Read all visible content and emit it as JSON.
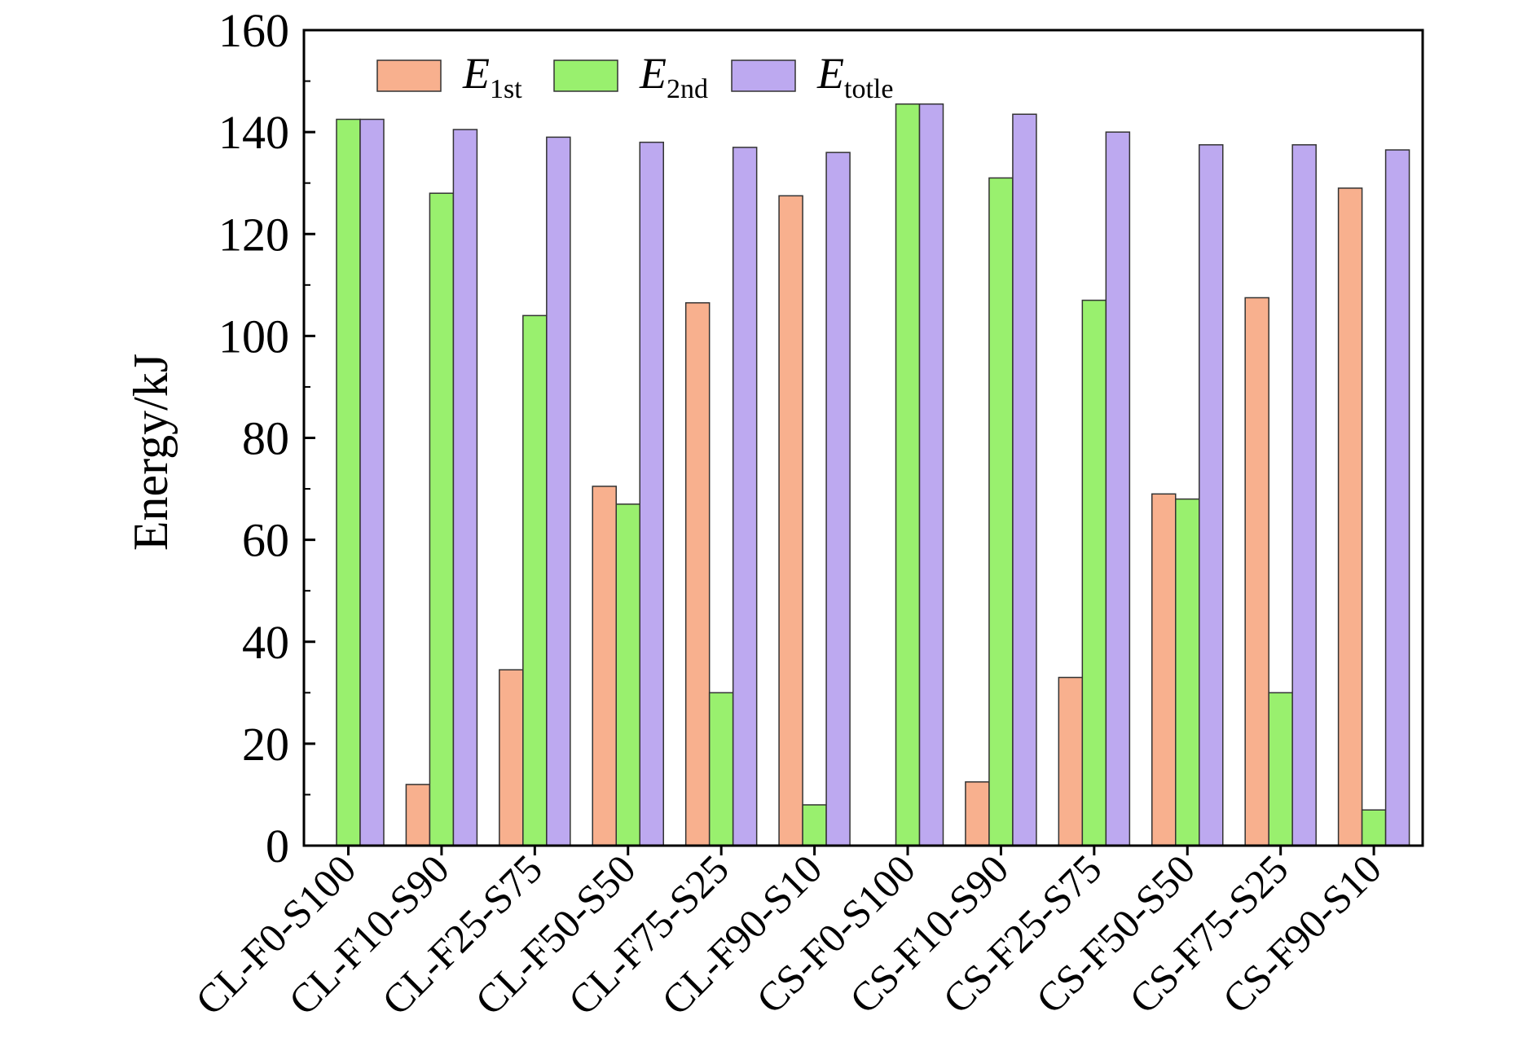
{
  "chart_data": {
    "type": "bar",
    "ylabel": "Energy/kJ",
    "xlabel": "",
    "ylim": [
      0,
      160
    ],
    "yticks": [
      0,
      20,
      40,
      60,
      80,
      100,
      120,
      140,
      160
    ],
    "grid": false,
    "legend_position": "top-left",
    "categories": [
      "CL-F0-S100",
      "CL-F10-S90",
      "CL-F25-S75",
      "CL-F50-S50",
      "CL-F75-S25",
      "CL-F90-S10",
      "CS-F0-S100",
      "CS-F10-S90",
      "CS-F25-S75",
      "CS-F50-S50",
      "CS-F75-S25",
      "CS-F90-S10"
    ],
    "series": [
      {
        "name": "E",
        "subscript": "1st",
        "color": "#F8B08E",
        "values": [
          0,
          12,
          34.5,
          70.5,
          106.5,
          127.5,
          0,
          12.5,
          33,
          69,
          107.5,
          129
        ]
      },
      {
        "name": "E",
        "subscript": "2nd",
        "color": "#99F06E",
        "values": [
          142.5,
          128,
          104,
          67,
          30,
          8,
          145.5,
          131,
          107,
          68,
          30,
          7
        ]
      },
      {
        "name": "E",
        "subscript": "totle",
        "color": "#BDA9F0",
        "values": [
          142.5,
          140.5,
          139,
          138,
          137,
          136,
          145.5,
          143.5,
          140,
          137.5,
          137.5,
          136.5
        ]
      }
    ]
  }
}
